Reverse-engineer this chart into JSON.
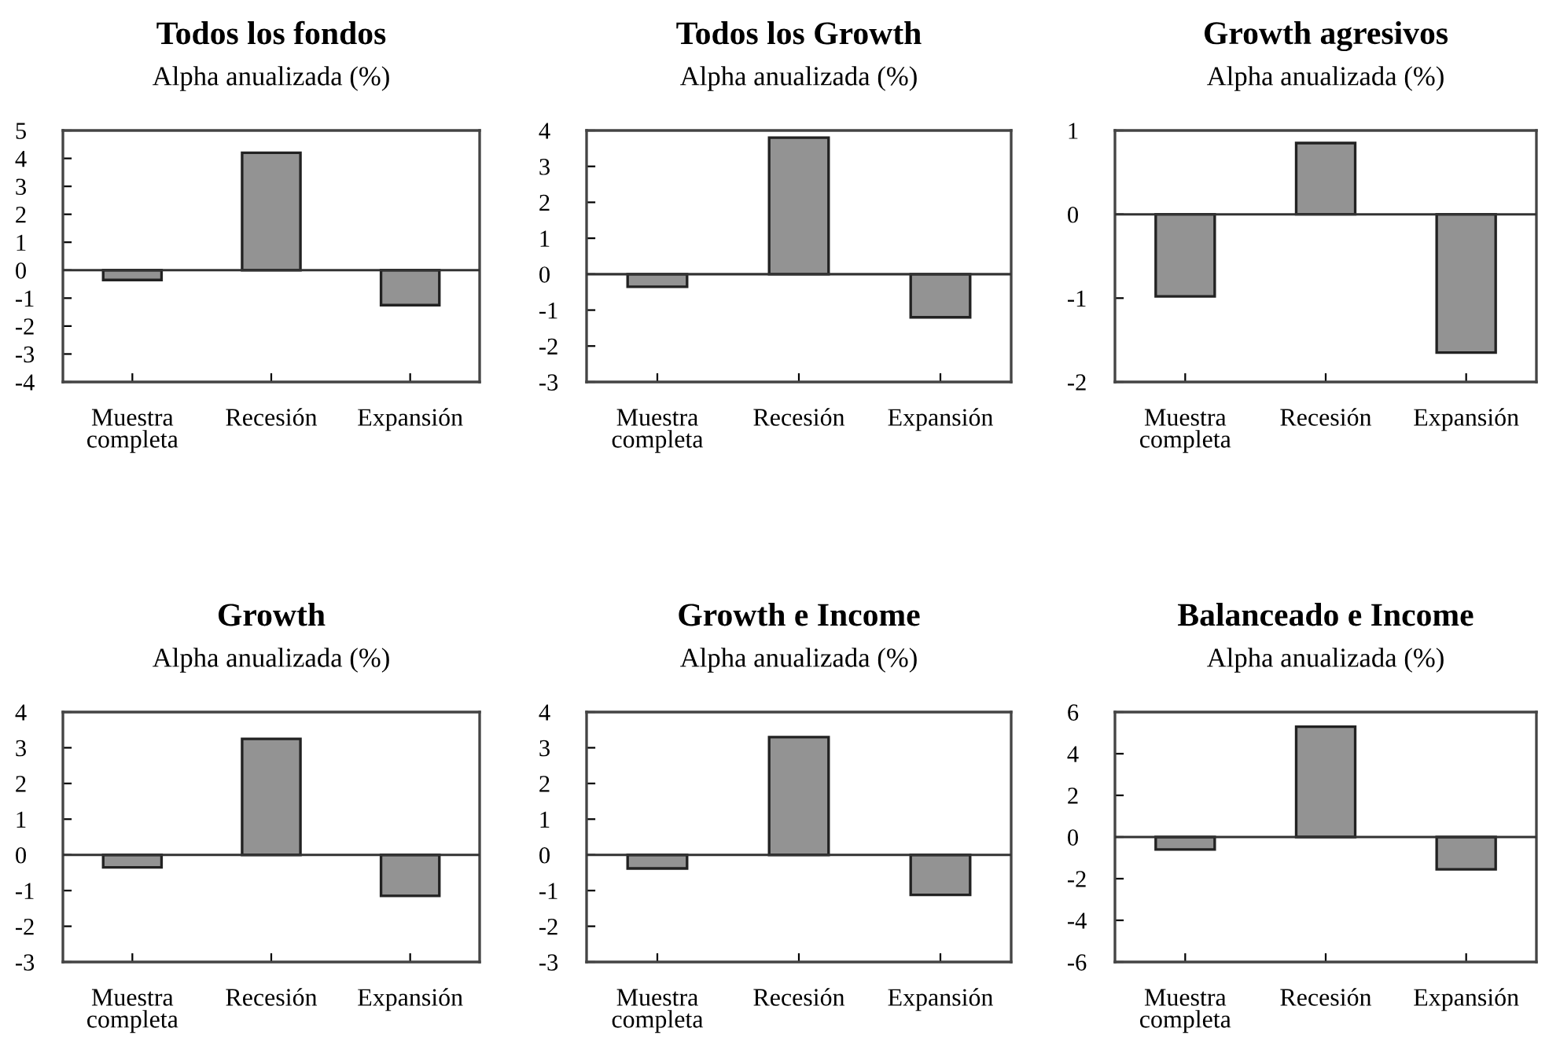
{
  "chart_data": [
    {
      "type": "bar",
      "title": "Todos los fondos",
      "subtitle": "Alpha anualizada (%)",
      "categories": [
        "Muestra\ncompleta",
        "Recesión",
        "Expansión"
      ],
      "values": [
        -0.35,
        4.2,
        -1.25
      ],
      "color": "#939393",
      "ylim": [
        -4,
        5
      ],
      "yticks": [
        -4,
        -3,
        -2,
        -1,
        0,
        1,
        2,
        3,
        4,
        5
      ],
      "ref_lines": [
        {
          "axis": "y",
          "value": 0,
          "label": null
        }
      ],
      "grid": false,
      "legend": false
    },
    {
      "type": "bar",
      "title": "Todos los Growth",
      "subtitle": "Alpha anualizada (%)",
      "categories": [
        "Muestra\ncompleta",
        "Recesión",
        "Expansión"
      ],
      "values": [
        -0.35,
        3.8,
        -1.2
      ],
      "color": "#939393",
      "ylim": [
        -3,
        4
      ],
      "yticks": [
        -3,
        -2,
        -1,
        0,
        1,
        2,
        3,
        4
      ],
      "ref_lines": [
        {
          "axis": "y",
          "value": 0,
          "label": null
        }
      ],
      "grid": false,
      "legend": false
    },
    {
      "type": "bar",
      "title": "Growth agresivos",
      "subtitle": "Alpha anualizada (%)",
      "categories": [
        "Muestra\ncompleta",
        "Recesión",
        "Expansión"
      ],
      "values": [
        -0.98,
        0.85,
        -1.65
      ],
      "color": "#939393",
      "ylim": [
        -2,
        1
      ],
      "yticks": [
        -2,
        -1,
        0,
        1
      ],
      "ref_lines": [
        {
          "axis": "y",
          "value": 0,
          "label": null
        }
      ],
      "grid": false,
      "legend": false
    },
    {
      "type": "bar",
      "title": "Growth",
      "subtitle": "Alpha anualizada (%)",
      "categories": [
        "Muestra\ncompleta",
        "Recesión",
        "Expansión"
      ],
      "values": [
        -0.35,
        3.25,
        -1.15
      ],
      "color": "#939393",
      "ylim": [
        -3,
        4
      ],
      "yticks": [
        -3,
        -2,
        -1,
        0,
        1,
        2,
        3,
        4
      ],
      "ref_lines": [
        {
          "axis": "y",
          "value": 0,
          "label": null
        }
      ],
      "grid": false,
      "legend": false
    },
    {
      "type": "bar",
      "title": "Growth e Income",
      "subtitle": "Alpha anualizada (%)",
      "categories": [
        "Muestra\ncompleta",
        "Recesión",
        "Expansión"
      ],
      "values": [
        -0.38,
        3.3,
        -1.12
      ],
      "color": "#939393",
      "ylim": [
        -3,
        4
      ],
      "yticks": [
        -3,
        -2,
        -1,
        0,
        1,
        2,
        3,
        4
      ],
      "ref_lines": [
        {
          "axis": "y",
          "value": 0,
          "label": null
        }
      ],
      "grid": false,
      "legend": false
    },
    {
      "type": "bar",
      "title": "Balanceado e Income",
      "subtitle": "Alpha anualizada (%)",
      "categories": [
        "Muestra\ncompleta",
        "Recesión",
        "Expansión"
      ],
      "values": [
        -0.6,
        5.3,
        -1.55
      ],
      "color": "#939393",
      "ylim": [
        -6,
        6
      ],
      "yticks": [
        -6,
        -4,
        -2,
        0,
        2,
        4,
        6
      ],
      "ref_lines": [
        {
          "axis": "y",
          "value": 0,
          "label": null
        }
      ],
      "grid": false,
      "legend": false
    }
  ]
}
